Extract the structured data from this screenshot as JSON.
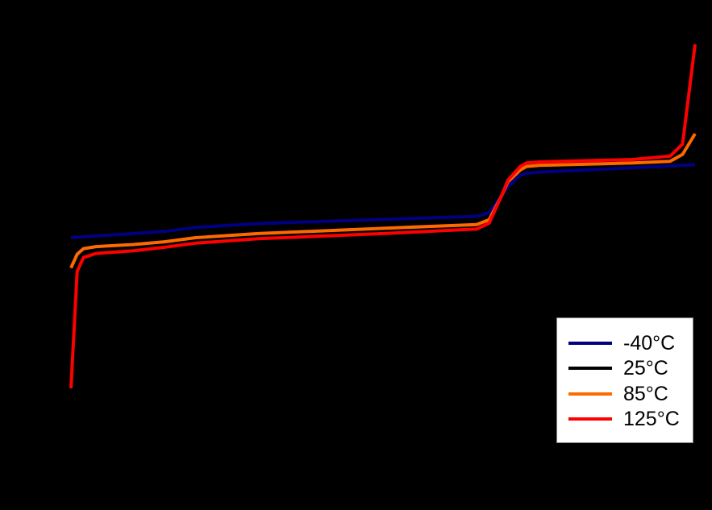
{
  "chart_data": {
    "type": "line",
    "title": "",
    "xlabel": "",
    "ylabel": "",
    "axes_visible": false,
    "note": "Axes, tick labels and the 25°C series are drawn in black on a black background; coordinates are given as relative plot units (x: 0-100 across plot width, y: 0-100 from bottom of plot area to top).",
    "xlim": [
      0,
      100
    ],
    "ylim": [
      0,
      100
    ],
    "legend_position": "lower right",
    "series": [
      {
        "name": "-40°C",
        "color": "#000080",
        "x": [
          0,
          5,
          15,
          20,
          30,
          50,
          65,
          67,
          69,
          70,
          72,
          73,
          75,
          100
        ],
        "y": [
          43.8,
          44.4,
          45.6,
          46.8,
          47.9,
          49.1,
          50.0,
          51.0,
          56.0,
          58.5,
          62.0,
          62.5,
          62.8,
          65.0
        ]
      },
      {
        "name": "25°C",
        "color": "#000000",
        "x": [],
        "y": []
      },
      {
        "name": "85°C",
        "color": "#FF6A00",
        "x": [
          0,
          1,
          2,
          4,
          10,
          15,
          20,
          30,
          50,
          65,
          67,
          69,
          70,
          72,
          73,
          75,
          90,
          96,
          98,
          100
        ],
        "y": [
          35.0,
          39.0,
          40.6,
          41.2,
          41.8,
          42.6,
          43.8,
          45.0,
          46.5,
          47.6,
          49.0,
          56.0,
          60.0,
          63.5,
          64.5,
          64.8,
          65.5,
          66.0,
          68.0,
          74.0
        ]
      },
      {
        "name": "125°C",
        "color": "#FF0000",
        "x": [
          0,
          1,
          2,
          4,
          10,
          15,
          20,
          30,
          50,
          65,
          67,
          69,
          70,
          72,
          73,
          75,
          90,
          96,
          98,
          100
        ],
        "y": [
          0.0,
          34.0,
          38.0,
          39.2,
          40.0,
          41.0,
          42.2,
          43.5,
          45.0,
          46.3,
          48.0,
          56.0,
          60.5,
          64.5,
          65.5,
          65.8,
          66.5,
          67.5,
          71.0,
          100.0
        ]
      }
    ]
  },
  "legend": {
    "items": [
      {
        "label": "-40°C",
        "color": "#000080"
      },
      {
        "label": "25°C",
        "color": "#000000"
      },
      {
        "label": "85°C",
        "color": "#FF6A00"
      },
      {
        "label": "125°C",
        "color": "#FF0000"
      }
    ]
  }
}
